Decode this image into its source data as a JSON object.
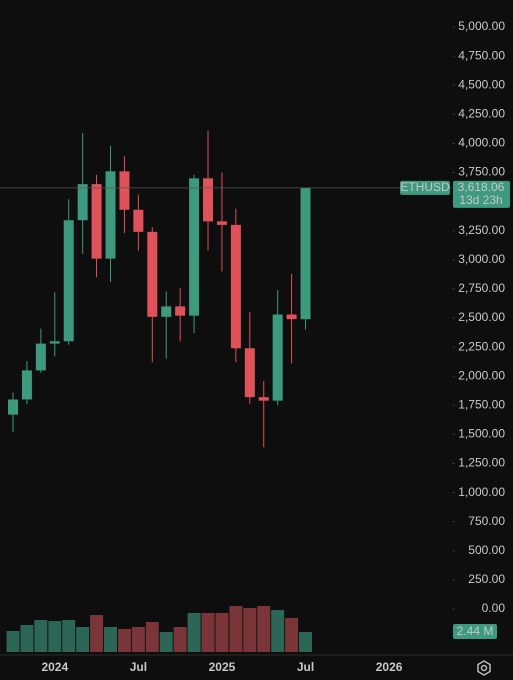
{
  "chart_data": {
    "type": "candlestick",
    "symbol": "ETHUSD",
    "last_price_label": "3,618.06",
    "countdown": "13d 23h",
    "volume_label": "2.44 M",
    "categories": [
      null,
      null,
      null,
      "2024",
      null,
      null,
      null,
      null,
      null,
      "Jul",
      null,
      null,
      null,
      null,
      null,
      "2025",
      null,
      null,
      null,
      null,
      null,
      "Jul",
      null,
      null,
      null,
      null,
      null,
      "2026"
    ],
    "open": [
      1670,
      1800,
      2050,
      2280,
      2300,
      3340,
      3650,
      3010,
      3760,
      3430,
      3240,
      2510,
      2600,
      2520,
      3700,
      3330,
      3300,
      2240,
      1820,
      1790,
      2530,
      2490,
      null,
      null,
      null,
      null,
      null,
      null
    ],
    "high": [
      1860,
      2130,
      2410,
      2720,
      3520,
      4090,
      3730,
      3980,
      3890,
      3560,
      3280,
      2730,
      2760,
      3730,
      4110,
      3750,
      3440,
      2550,
      1960,
      2740,
      2880,
      3618.06,
      null,
      null,
      null,
      null,
      null,
      null
    ],
    "low": [
      1520,
      1760,
      2030,
      2170,
      2270,
      3050,
      2850,
      2810,
      3230,
      3080,
      2120,
      2150,
      2300,
      2370,
      3080,
      2900,
      2120,
      1760,
      1390,
      1750,
      2110,
      2400,
      null,
      null,
      null,
      null,
      null,
      null
    ],
    "close": [
      1800,
      2050,
      2280,
      2300,
      3340,
      3650,
      3010,
      3760,
      3430,
      3240,
      2510,
      2600,
      2520,
      3700,
      3330,
      3300,
      2240,
      1820,
      1790,
      2530,
      2490,
      3618.06,
      null,
      null,
      null,
      null,
      null,
      null
    ],
    "volume": [
      2.56,
      3.29,
      3.9,
      3.78,
      3.9,
      3.05,
      4.51,
      3.05,
      2.81,
      3.05,
      3.66,
      2.44,
      3.05,
      4.76,
      4.76,
      4.76,
      5.61,
      5.37,
      5.61,
      5.12,
      4.15,
      2.44,
      null,
      null,
      null,
      null,
      null,
      null
    ],
    "up_color": "#3d9a7e",
    "down_color": "#e05259",
    "volume_up_color": "#2c6656",
    "volume_down_color": "#7a3538",
    "ylim": [
      0,
      5000
    ],
    "yticks": [
      {
        "value": 0,
        "label": "0.00"
      },
      {
        "value": 250,
        "label": "250.00"
      },
      {
        "value": 500,
        "label": "500.00"
      },
      {
        "value": 750,
        "label": "750.00"
      },
      {
        "value": 1000,
        "label": "1,000.00"
      },
      {
        "value": 1250,
        "label": "1,250.00"
      },
      {
        "value": 1500,
        "label": "1,500.00"
      },
      {
        "value": 1750,
        "label": "1,750.00"
      },
      {
        "value": 2000,
        "label": "2,000.00"
      },
      {
        "value": 2250,
        "label": "2,250.00"
      },
      {
        "value": 2500,
        "label": "2,500.00"
      },
      {
        "value": 2750,
        "label": "2,750.00"
      },
      {
        "value": 3000,
        "label": "3,000.00"
      },
      {
        "value": 3250,
        "label": "3,250.00"
      },
      {
        "value": 3500,
        "label": "3,500.00"
      },
      {
        "value": 3750,
        "label": "3,750.00"
      },
      {
        "value": 4000,
        "label": "4,000.00"
      },
      {
        "value": 4250,
        "label": "4,250.00"
      },
      {
        "value": 4500,
        "label": "4,500.00"
      },
      {
        "value": 4750,
        "label": "4,750.00"
      },
      {
        "value": 5000,
        "label": "5,000.00"
      }
    ]
  }
}
